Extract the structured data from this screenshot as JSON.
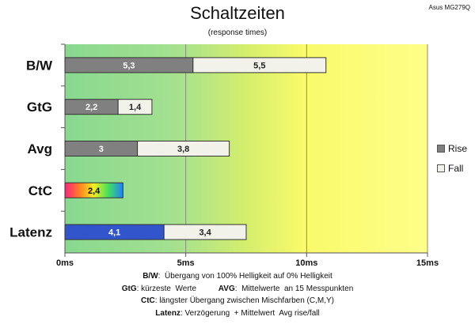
{
  "monitor_label": "Asus MG279Q",
  "chart_data": {
    "type": "bar",
    "orientation": "horizontal",
    "stacked": true,
    "title": "Schaltzeiten",
    "subtitle": "(response times)",
    "categories": [
      "B/W",
      "GtG",
      "Avg",
      "CtC",
      "Latenz"
    ],
    "series": [
      {
        "name": "Rise",
        "color": "#808080",
        "values": [
          5.3,
          2.2,
          3,
          2.4,
          4.1
        ],
        "labels": [
          "5,3",
          "2,2",
          "3",
          "2,4",
          "4,1"
        ]
      },
      {
        "name": "Fall",
        "color": "#f2f2ea",
        "values": [
          5.5,
          1.4,
          3.8,
          null,
          3.4
        ],
        "labels": [
          "5,5",
          "1,4",
          "3,8",
          "",
          "3,4"
        ]
      }
    ],
    "special_fills": {
      "CtC": "rainbow",
      "Latenz": "#3355cc"
    },
    "xlim": [
      0,
      15
    ],
    "xticks": [
      0,
      5,
      10,
      15
    ],
    "xtick_labels": [
      "0ms",
      "5ms",
      "10ms",
      "15ms"
    ],
    "grid": true,
    "background": "gradient green to yellow",
    "legend_position": "right"
  },
  "footnotes": [
    {
      "parts": [
        {
          "bold": "B/W"
        },
        {
          "text": ":  Übergang von 100% Helligkeit auf 0% Helligkeit"
        }
      ]
    },
    {
      "parts": [
        {
          "bold": "GtG"
        },
        {
          "text": ": kürzeste  Werte          "
        },
        {
          "bold": "AVG"
        },
        {
          "text": ":  Mittelwerte  an 15 Messpunkten"
        }
      ]
    },
    {
      "parts": [
        {
          "bold": "CtC"
        },
        {
          "text": ": längster Übergang zwischen Mischfarben (C,M,Y)"
        }
      ]
    },
    {
      "parts": [
        {
          "bold": "Latenz"
        },
        {
          "text": ": Verzögerung  + Mittelwert  Avg rise/fall"
        }
      ]
    }
  ]
}
